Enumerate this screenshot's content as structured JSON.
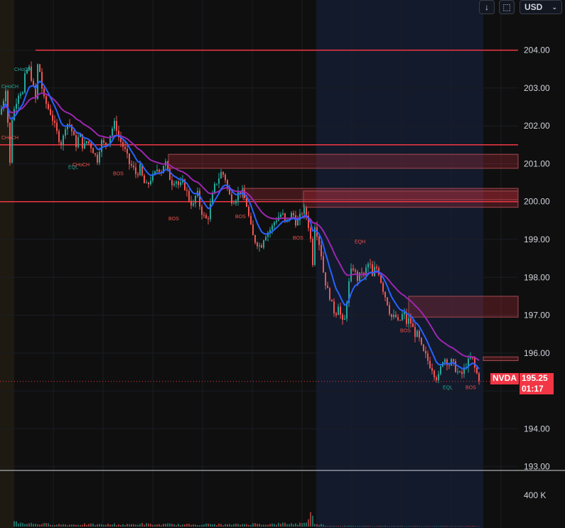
{
  "toolbar": {
    "down_icon": "arrow-down-icon",
    "reset_icon": "square-corners-icon",
    "currency_label": "USD",
    "currency_chevron": "chevron-down-icon"
  },
  "colors": {
    "background": "#0f0f0f",
    "session_bg": "#131a2b",
    "premarket_bg": "#1e1a12",
    "up": "#26a69a",
    "down": "#ef5350",
    "ema_fast": "#2962ff",
    "ema_slow": "#9c27b0",
    "level_line": "#f23645",
    "zone_fill": "rgba(242,54,69,0.22)",
    "zone_border": "#a34a52"
  },
  "symbol_tag": "NVDA",
  "last_price": "195.25",
  "countdown": "01:17",
  "volume_axis_label": "400 K",
  "chart_data": {
    "type": "candlestick",
    "y_ticks": [
      "204.00",
      "203.00",
      "202.00",
      "201.00",
      "200.00",
      "199.00",
      "198.00",
      "197.00",
      "196.00",
      "195.00",
      "194.00",
      "193.00"
    ],
    "ylim": [
      192.9,
      204.95
    ],
    "grid": true,
    "price_path": [
      [
        0,
        202.3
      ],
      [
        5,
        202.7
      ],
      [
        9,
        203.1
      ],
      [
        12,
        201.6
      ],
      [
        14,
        201.0
      ],
      [
        17,
        202.2
      ],
      [
        22,
        202.6
      ],
      [
        28,
        203.0
      ],
      [
        31,
        202.7
      ],
      [
        35,
        203.3
      ],
      [
        40,
        203.6
      ],
      [
        46,
        203.1
      ],
      [
        50,
        202.7
      ],
      [
        54,
        203.9
      ],
      [
        57,
        203.2
      ],
      [
        62,
        202.7
      ],
      [
        67,
        202.5
      ],
      [
        72,
        202.3
      ],
      [
        77,
        202.0
      ],
      [
        82,
        201.7
      ],
      [
        87,
        201.5
      ],
      [
        92,
        202.0
      ],
      [
        97,
        202.1
      ],
      [
        102,
        201.8
      ],
      [
        107,
        201.5
      ],
      [
        112,
        201.8
      ],
      [
        117,
        201.4
      ],
      [
        122,
        201.6
      ],
      [
        127,
        201.5
      ],
      [
        132,
        201.3
      ],
      [
        137,
        201.1
      ],
      [
        142,
        201.6
      ],
      [
        147,
        201.5
      ],
      [
        152,
        201.6
      ],
      [
        157,
        201.9
      ],
      [
        162,
        202.1
      ],
      [
        167,
        201.7
      ],
      [
        172,
        201.5
      ],
      [
        177,
        201.3
      ],
      [
        182,
        201.0
      ],
      [
        187,
        200.9
      ],
      [
        192,
        200.7
      ],
      [
        197,
        200.9
      ],
      [
        202,
        200.5
      ],
      [
        207,
        200.4
      ],
      [
        212,
        200.6
      ],
      [
        217,
        200.7
      ],
      [
        222,
        200.9
      ],
      [
        227,
        200.8
      ],
      [
        232,
        201.1
      ],
      [
        237,
        200.7
      ],
      [
        242,
        200.5
      ],
      [
        247,
        200.6
      ],
      [
        252,
        200.4
      ],
      [
        257,
        200.5
      ],
      [
        262,
        200.3
      ],
      [
        267,
        200.0
      ],
      [
        272,
        199.9
      ],
      [
        277,
        200.3
      ],
      [
        282,
        199.8
      ],
      [
        287,
        199.6
      ],
      [
        292,
        199.5
      ],
      [
        297,
        200.0
      ],
      [
        302,
        200.4
      ],
      [
        307,
        200.6
      ],
      [
        312,
        200.8
      ],
      [
        317,
        200.6
      ],
      [
        322,
        200.2
      ],
      [
        327,
        200.0
      ],
      [
        332,
        200.1
      ],
      [
        337,
        200.3
      ],
      [
        342,
        200.2
      ],
      [
        347,
        199.9
      ],
      [
        352,
        199.4
      ],
      [
        357,
        199.0
      ],
      [
        362,
        198.9
      ],
      [
        367,
        198.8
      ],
      [
        372,
        199.1
      ],
      [
        377,
        199.2
      ],
      [
        382,
        199.3
      ],
      [
        387,
        199.5
      ],
      [
        392,
        199.6
      ],
      [
        397,
        199.7
      ],
      [
        402,
        199.4
      ],
      [
        407,
        199.6
      ],
      [
        412,
        199.7
      ],
      [
        417,
        199.4
      ],
      [
        422,
        199.6
      ],
      [
        427,
        199.8
      ],
      [
        432,
        199.6
      ],
      [
        437,
        199.0
      ],
      [
        440,
        198.4
      ],
      [
        443,
        199.4
      ],
      [
        448,
        199.0
      ],
      [
        452,
        198.6
      ],
      [
        456,
        198.0
      ],
      [
        460,
        197.7
      ],
      [
        464,
        197.5
      ],
      [
        468,
        197.2
      ],
      [
        472,
        197.0
      ],
      [
        476,
        197.3
      ],
      [
        480,
        196.9
      ],
      [
        484,
        196.7
      ],
      [
        488,
        197.4
      ],
      [
        492,
        198.0
      ],
      [
        496,
        198.3
      ],
      [
        500,
        198.1
      ],
      [
        504,
        197.9
      ],
      [
        508,
        198.2
      ],
      [
        512,
        198.0
      ],
      [
        516,
        198.3
      ],
      [
        520,
        198.4
      ],
      [
        524,
        198.0
      ],
      [
        528,
        198.3
      ],
      [
        532,
        198.2
      ],
      [
        536,
        197.9
      ],
      [
        540,
        197.6
      ],
      [
        544,
        197.4
      ],
      [
        548,
        197.1
      ],
      [
        552,
        196.9
      ],
      [
        556,
        197.0
      ],
      [
        560,
        196.8
      ],
      [
        564,
        196.9
      ],
      [
        568,
        197.1
      ],
      [
        572,
        196.8
      ],
      [
        576,
        196.9
      ],
      [
        580,
        196.7
      ],
      [
        584,
        196.5
      ],
      [
        588,
        196.5
      ],
      [
        592,
        196.2
      ],
      [
        596,
        196.0
      ],
      [
        600,
        195.9
      ],
      [
        604,
        195.7
      ],
      [
        608,
        195.6
      ],
      [
        612,
        195.4
      ],
      [
        616,
        195.3
      ],
      [
        620,
        195.6
      ],
      [
        624,
        195.9
      ],
      [
        628,
        195.8
      ],
      [
        632,
        195.7
      ],
      [
        636,
        195.8
      ],
      [
        640,
        195.6
      ],
      [
        644,
        195.5
      ],
      [
        648,
        195.4
      ],
      [
        652,
        195.5
      ],
      [
        656,
        195.7
      ],
      [
        660,
        195.8
      ],
      [
        664,
        195.9
      ],
      [
        668,
        195.6
      ],
      [
        672,
        195.4
      ],
      [
        676,
        195.25
      ]
    ],
    "levels": [
      {
        "from": 50,
        "price": 204.0
      },
      {
        "from": 0,
        "price": 200.0
      },
      {
        "from": 0,
        "price": 201.5
      },
      {
        "from": 0,
        "price": 195.25,
        "dotted": true
      }
    ],
    "zones": [
      {
        "from": 237,
        "to": 729,
        "top": 201.25,
        "bottom": 200.88
      },
      {
        "from": 342,
        "to": 729,
        "top": 200.35,
        "bottom": 200.05
      },
      {
        "from": 427,
        "to": 729,
        "top": 200.28,
        "bottom": 199.85
      },
      {
        "from": 575,
        "to": 729,
        "top": 197.5,
        "bottom": 196.95
      },
      {
        "from": 680,
        "to": 729,
        "top": 195.9,
        "bottom": 195.8
      }
    ],
    "annotations": [
      {
        "text": "CHoCH",
        "x": 20,
        "y": 203.45,
        "color": "up"
      },
      {
        "text": "CHoCH",
        "x": 2,
        "y": 203.0,
        "color": "up"
      },
      {
        "text": "CHoCH",
        "x": 2,
        "y": 201.65,
        "color": "down"
      },
      {
        "text": "EQL",
        "x": 96,
        "y": 200.87,
        "color": "up"
      },
      {
        "text": "CHoCH",
        "x": 102,
        "y": 200.93,
        "color": "down"
      },
      {
        "text": "BOS",
        "x": 159,
        "y": 200.7,
        "color": "down"
      },
      {
        "text": "BOS",
        "x": 237,
        "y": 199.51,
        "color": "down"
      },
      {
        "text": "BOS",
        "x": 331,
        "y": 199.56,
        "color": "down"
      },
      {
        "text": "BOS",
        "x": 412,
        "y": 199.0,
        "color": "down"
      },
      {
        "text": "EQH",
        "x": 499,
        "y": 198.9,
        "color": "down"
      },
      {
        "text": "BOS",
        "x": 563,
        "y": 196.55,
        "color": "down"
      },
      {
        "text": "EQL",
        "x": 623,
        "y": 195.05,
        "color": "up"
      },
      {
        "text": "BOS",
        "x": 655,
        "y": 195.05,
        "color": "down"
      }
    ],
    "volume_max": 400,
    "volume": [
      [
        20,
        60
      ],
      [
        40,
        40
      ],
      [
        60,
        35
      ],
      [
        80,
        30
      ],
      [
        100,
        25
      ],
      [
        120,
        30
      ],
      [
        140,
        25
      ],
      [
        160,
        30
      ],
      [
        180,
        25
      ],
      [
        200,
        35
      ],
      [
        220,
        25
      ],
      [
        240,
        30
      ],
      [
        260,
        25
      ],
      [
        280,
        30
      ],
      [
        300,
        30
      ],
      [
        320,
        25
      ],
      [
        340,
        30
      ],
      [
        360,
        35
      ],
      [
        380,
        30
      ],
      [
        400,
        40
      ],
      [
        420,
        35
      ],
      [
        435,
        80
      ],
      [
        438,
        230
      ],
      [
        441,
        50
      ],
      [
        460,
        10
      ],
      [
        500,
        8
      ],
      [
        540,
        8
      ],
      [
        580,
        6
      ],
      [
        620,
        6
      ],
      [
        660,
        6
      ]
    ]
  }
}
